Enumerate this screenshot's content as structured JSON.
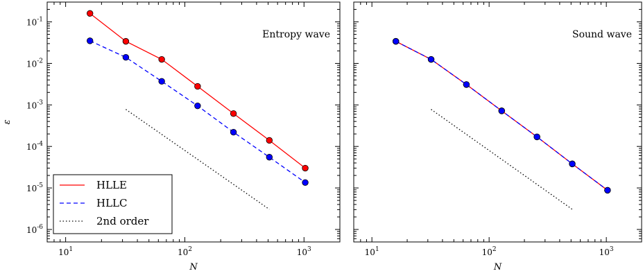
{
  "chart_data": [
    {
      "type": "line",
      "title": "Entropy wave",
      "xlabel": "N",
      "ylabel": "ε",
      "xscale": "log",
      "yscale": "log",
      "xlim": [
        7,
        2000
      ],
      "ylim": [
        5e-07,
        0.3
      ],
      "x_ticks": [
        {
          "value": 10,
          "base": "10",
          "exp": "1"
        },
        {
          "value": 100,
          "base": "10",
          "exp": "2"
        },
        {
          "value": 1000,
          "base": "10",
          "exp": "3"
        }
      ],
      "y_ticks": [
        {
          "value": 1e-06,
          "base": "10",
          "exp": "-6"
        },
        {
          "value": 1e-05,
          "base": "10",
          "exp": "-5"
        },
        {
          "value": 0.0001,
          "base": "10",
          "exp": "-4"
        },
        {
          "value": 0.001,
          "base": "10",
          "exp": "-3"
        },
        {
          "value": 0.01,
          "base": "10",
          "exp": "-2"
        },
        {
          "value": 0.1,
          "base": "10",
          "exp": "-1"
        }
      ],
      "legend_position": "bottom-left",
      "series": [
        {
          "name": "HLLE",
          "color": "#ff0000",
          "style": "solid",
          "marker": "circle",
          "x": [
            16,
            32,
            64,
            128,
            256,
            512,
            1024
          ],
          "y": [
            0.16,
            0.034,
            0.0125,
            0.0028,
            0.00062,
            0.00014,
            3e-05
          ]
        },
        {
          "name": "HLLC",
          "color": "#0000ff",
          "style": "dashed",
          "marker": "circle",
          "x": [
            16,
            32,
            64,
            128,
            256,
            512,
            1024
          ],
          "y": [
            0.035,
            0.014,
            0.0037,
            0.00095,
            0.00022,
            5.5e-05,
            1.35e-05
          ]
        },
        {
          "name": "2nd order",
          "color": "#000000",
          "style": "dotted",
          "marker": "none",
          "x": [
            32,
            512
          ],
          "y": [
            0.00078,
            3.05e-06
          ]
        }
      ]
    },
    {
      "type": "line",
      "title": "Sound wave",
      "xlabel": "N",
      "ylabel": "",
      "xscale": "log",
      "yscale": "log",
      "xlim": [
        7,
        2000
      ],
      "ylim": [
        5e-07,
        0.3
      ],
      "x_ticks": [
        {
          "value": 10,
          "base": "10",
          "exp": "1"
        },
        {
          "value": 100,
          "base": "10",
          "exp": "2"
        },
        {
          "value": 1000,
          "base": "10",
          "exp": "3"
        }
      ],
      "series": [
        {
          "name": "HLLE",
          "color": "#ff0000",
          "style": "solid",
          "marker": "circle",
          "x": [
            16,
            32,
            64,
            128,
            256,
            512,
            1024
          ],
          "y": [
            0.034,
            0.0125,
            0.0031,
            0.00072,
            0.00017,
            3.8e-05,
            8.8e-06
          ]
        },
        {
          "name": "HLLC",
          "color": "#0000ff",
          "style": "dashed",
          "marker": "circle",
          "x": [
            16,
            32,
            64,
            128,
            256,
            512,
            1024
          ],
          "y": [
            0.034,
            0.0125,
            0.0031,
            0.00072,
            0.00017,
            3.8e-05,
            8.8e-06
          ]
        },
        {
          "name": "2nd order",
          "color": "#000000",
          "style": "dotted",
          "marker": "none",
          "x": [
            32,
            512
          ],
          "y": [
            0.00078,
            3.05e-06
          ]
        }
      ]
    }
  ]
}
